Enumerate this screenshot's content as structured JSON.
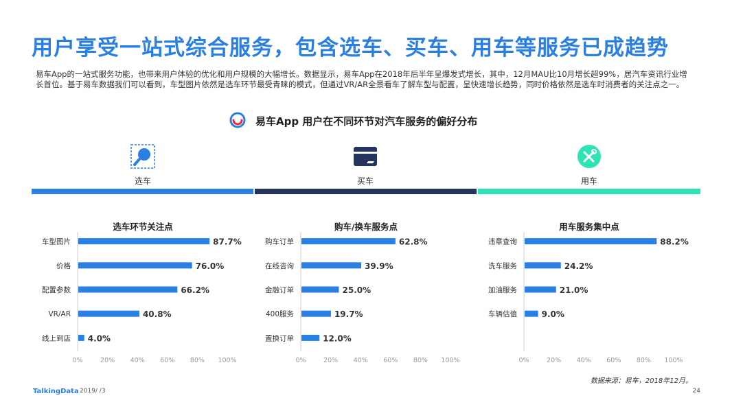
{
  "title": "用户享受一站式综合服务，包含选车、买车、用车等服务已成趋势",
  "intro": "易车App的一站式服务功能，也带来用户体验的优化和用户规模的大幅增长。数据显示，易车App在2018年后半年呈爆发式增长，其中，12月MAU比10月增长超99%，居汽车资讯行业增长首位。基于易车数据我们可以看到，车型图片依然是选车环节最受青睐的模式，但通过VR/AR全景看车了解车型与配置，呈快速增长趋势，同时价格依然是选车时消费者的关注点之一。",
  "subheading": "易车App  用户在不同环节对汽车服务的偏好分布",
  "stages": [
    {
      "label": "选车",
      "color": "#2a7fe3",
      "icon": "magnifier-icon"
    },
    {
      "label": "买车",
      "color": "#25345e",
      "icon": "card-icon"
    },
    {
      "label": "用车",
      "color": "#2ee3b4",
      "icon": "tools-icon"
    }
  ],
  "chart_data": [
    {
      "type": "bar",
      "title": "选车环节关注点",
      "categories": [
        "车型图片",
        "价格",
        "配置参数",
        "VR/AR",
        "线上到店"
      ],
      "values": [
        87.7,
        76.0,
        66.2,
        40.8,
        4.0
      ],
      "value_labels": [
        "87.7%",
        "76.0%",
        "66.2%",
        "40.8%",
        "4.0%"
      ],
      "xlim": [
        0,
        100
      ],
      "ticks": [
        "0%",
        "20%",
        "40%",
        "60%",
        "80%",
        "100%"
      ],
      "color": "#2a7fe3"
    },
    {
      "type": "bar",
      "title": "购车/换车服务点",
      "categories": [
        "购车订单",
        "在线咨询",
        "金融订单",
        "400服务",
        "置换订单"
      ],
      "values": [
        62.8,
        39.9,
        25.0,
        19.7,
        12.0
      ],
      "value_labels": [
        "62.8%",
        "39.9%",
        "25.0%",
        "19.7%",
        "12.0%"
      ],
      "xlim": [
        0,
        100
      ],
      "ticks": [
        "0%",
        "20%",
        "40%",
        "60%",
        "80%",
        "100%"
      ],
      "color": "#2a7fe3"
    },
    {
      "type": "bar",
      "title": "用车服务集中点",
      "categories": [
        "违章查询",
        "洗车服务",
        "加油服务",
        "车辆估值"
      ],
      "values": [
        88.2,
        24.2,
        21.0,
        9.0
      ],
      "value_labels": [
        "88.2%",
        "24.2%",
        "21.0%",
        "9.0%"
      ],
      "xlim": [
        0,
        100
      ],
      "ticks": [
        "0%",
        "20%",
        "40%",
        "60%",
        "80%",
        "100%"
      ],
      "color": "#2a7fe3"
    }
  ],
  "footer": {
    "source": "数据来源：易车，2018年12月。",
    "brand": "TalkingData",
    "date": "2019/ /3",
    "page": "24"
  }
}
